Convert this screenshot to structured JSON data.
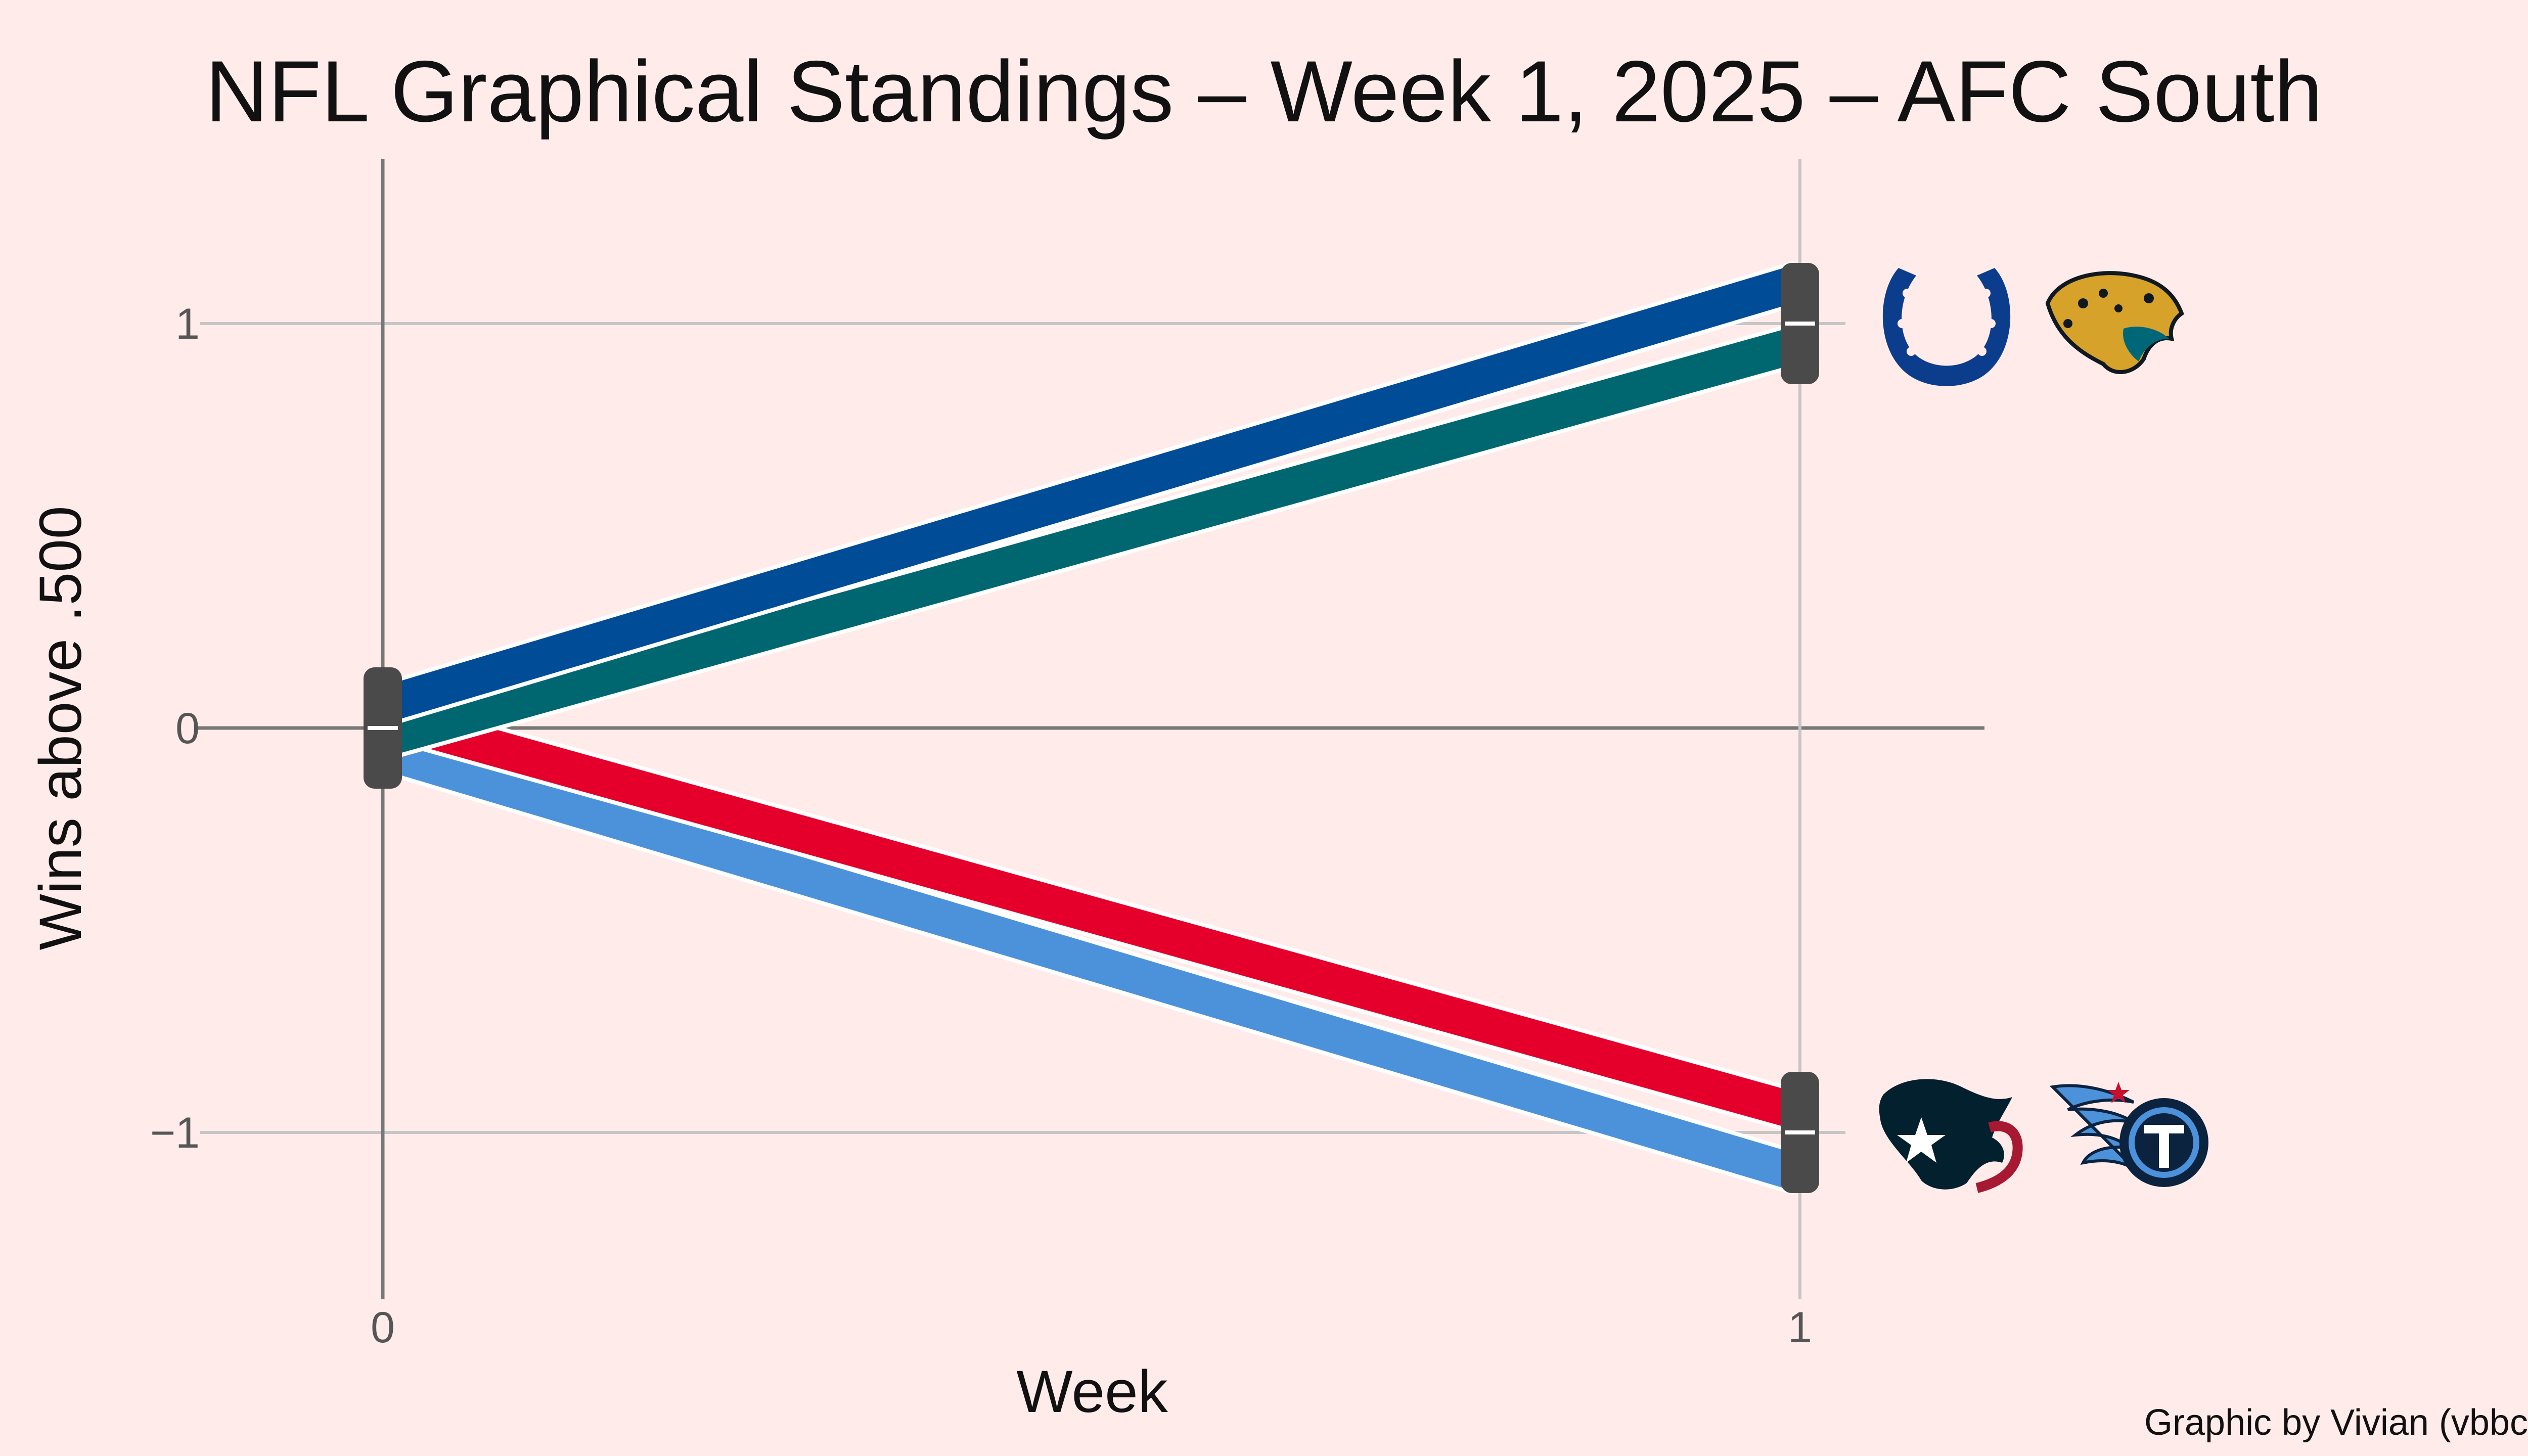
{
  "background": "#FFECEA",
  "chart_data": {
    "type": "line",
    "title": "NFL Graphical Standings – Week 1, 2025 – AFC South",
    "xlabel": "Week",
    "ylabel": "Wins above .500",
    "x": [
      0,
      1
    ],
    "xticks": [
      "0",
      "1"
    ],
    "yticks": [
      "1",
      "0",
      "−1"
    ],
    "ytick_values": [
      1,
      0,
      -1
    ],
    "xlim": [
      -0.2,
      1.15
    ],
    "ylim": [
      -1.4,
      1.4
    ],
    "grid": true,
    "credit": "Graphic by Vivian (vbbcla)",
    "series": [
      {
        "team": "Indianapolis Colts",
        "values": [
          0,
          1
        ],
        "color": "#004C97",
        "icon": "colts-horseshoe-logo"
      },
      {
        "team": "Jacksonville Jaguars",
        "values": [
          0,
          1
        ],
        "color": "#006770",
        "icon": "jaguars-head-logo"
      },
      {
        "team": "Houston Texans",
        "values": [
          0,
          -1
        ],
        "color": "#E4002B",
        "icon": "texans-bull-logo"
      },
      {
        "team": "Tennessee Titans",
        "values": [
          0,
          -1
        ],
        "color": "#4B92DB",
        "icon": "titans-flaming-t-logo"
      }
    ]
  }
}
